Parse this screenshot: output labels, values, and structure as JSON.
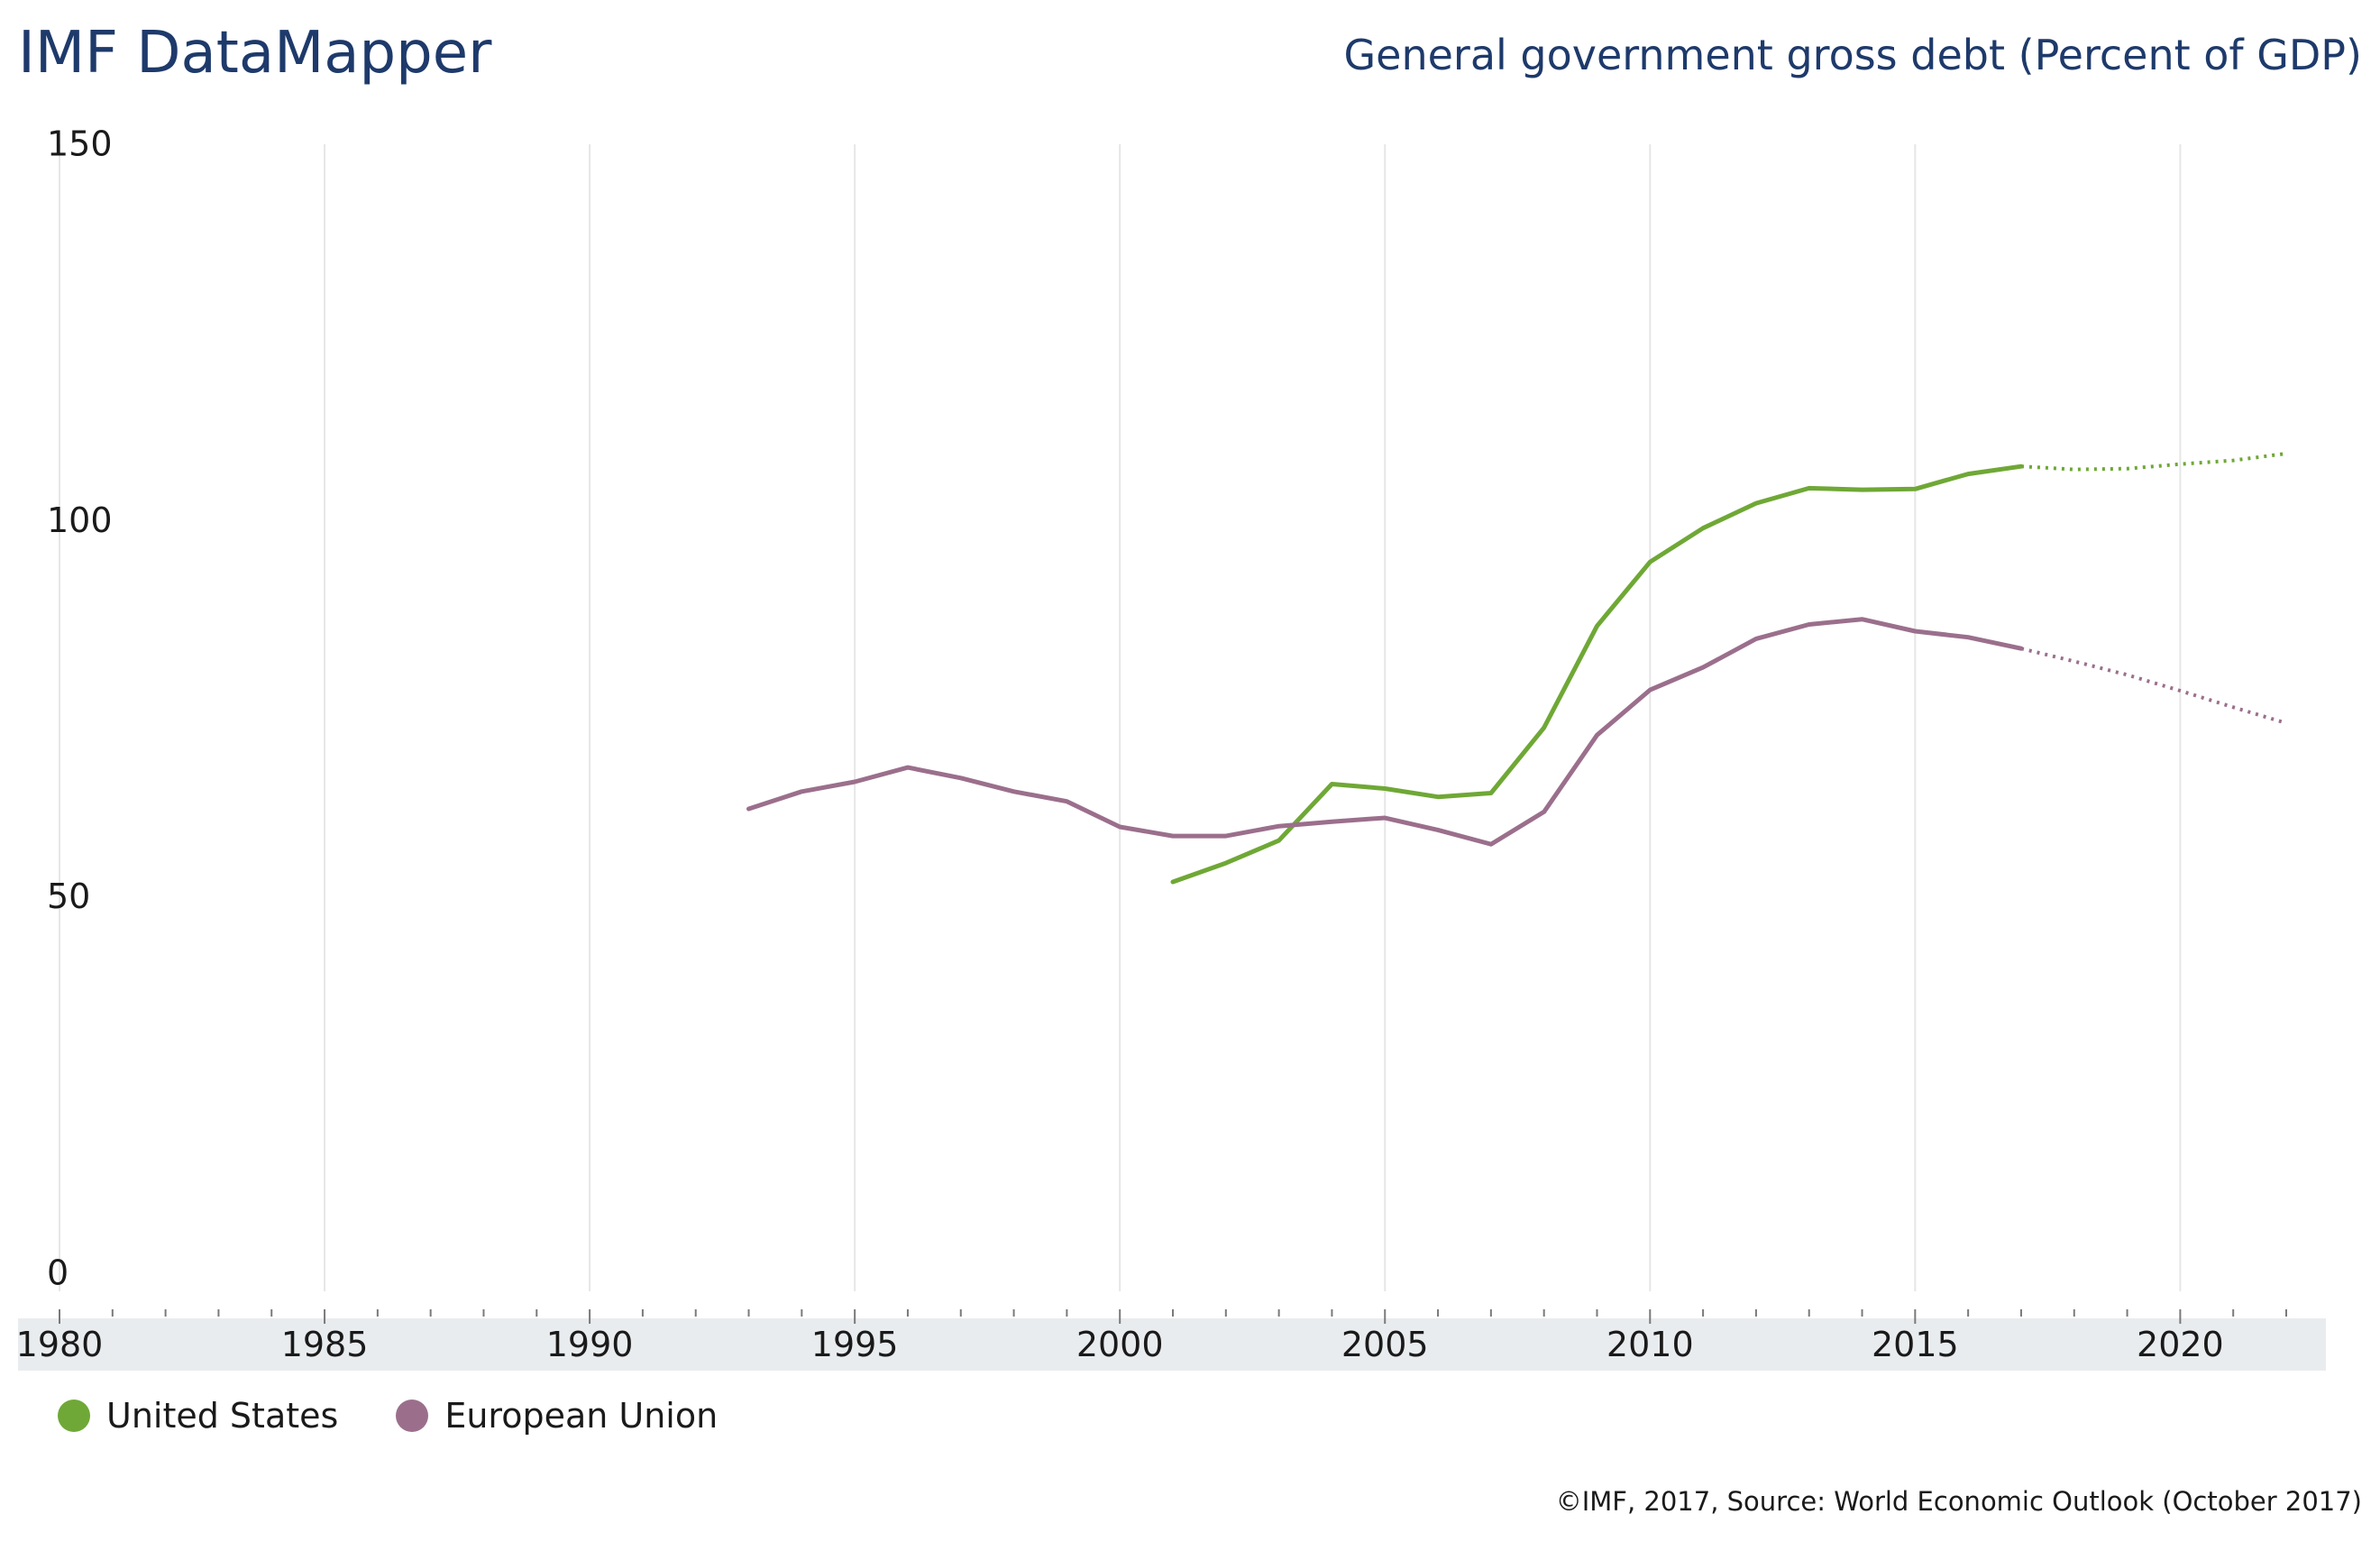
{
  "header": {
    "brand": "IMF DataMapper",
    "chart_title": "General government gross debt (Percent of GDP)"
  },
  "footer": {
    "source": "©IMF, 2017, Source: World Economic Outlook (October 2017)"
  },
  "colors": {
    "united_states": "#6fa836",
    "european_union": "#9b6f8c",
    "gridline": "#e6e6e6",
    "axis_band": "#e9ecef",
    "title_text": "#1e3a6b"
  },
  "chart_data": {
    "type": "line",
    "title": "General government gross debt (Percent of GDP)",
    "xlabel": "",
    "ylabel": "",
    "xlim": [
      1980,
      2022
    ],
    "ylim": [
      0,
      150
    ],
    "x_ticks": [
      1980,
      1985,
      1990,
      1995,
      2000,
      2005,
      2010,
      2015,
      2020
    ],
    "y_ticks": [
      0,
      50,
      100,
      150
    ],
    "grid": {
      "vertical": true,
      "horizontal": false
    },
    "legend": "bottom-left",
    "projection_start_year": 2017,
    "series": [
      {
        "name": "United States",
        "color": "#6fa836",
        "x": [
          2001,
          2002,
          2003,
          2004,
          2005,
          2006,
          2007,
          2008,
          2009,
          2010,
          2011,
          2012,
          2013,
          2014,
          2015,
          2016,
          2017,
          2018,
          2019,
          2020,
          2021,
          2022
        ],
        "values": [
          52,
          54.5,
          57.5,
          65,
          64.4,
          63.3,
          63.8,
          72.5,
          86,
          94.5,
          99,
          102.3,
          104.3,
          104.1,
          104.2,
          106.2,
          107.2,
          106.8,
          106.9,
          107.5,
          108,
          108.9
        ]
      },
      {
        "name": "European Union",
        "color": "#9b6f8c",
        "x": [
          1993,
          1994,
          1995,
          1996,
          1997,
          1998,
          1999,
          2000,
          2001,
          2002,
          2003,
          2004,
          2005,
          2006,
          2007,
          2008,
          2009,
          2010,
          2011,
          2012,
          2013,
          2014,
          2015,
          2016,
          2017,
          2018,
          2019,
          2020,
          2021,
          2022
        ],
        "values": [
          61.7,
          64,
          65.3,
          67.2,
          65.8,
          64,
          62.7,
          59.3,
          58.1,
          58.1,
          59.4,
          60,
          60.5,
          58.9,
          57,
          61.3,
          71.5,
          77.5,
          80.5,
          84.3,
          86.2,
          86.9,
          85.3,
          84.5,
          83,
          81.3,
          79.5,
          77.4,
          75.2,
          73.1
        ]
      }
    ]
  }
}
